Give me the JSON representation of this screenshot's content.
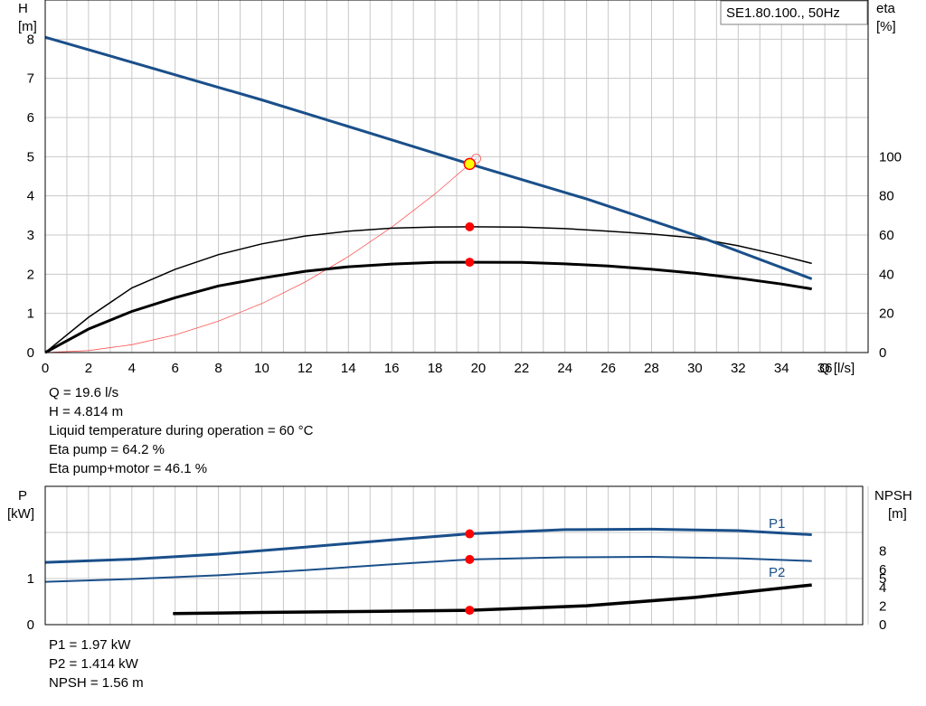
{
  "top_chart": {
    "legend_box": "SE1.80.100., 50Hz",
    "y_left_label": "H",
    "y_left_unit": "[m]",
    "y_right_label": "eta",
    "y_right_unit": "[%]",
    "x_axis_label": "Q [l/s]"
  },
  "bottom_chart": {
    "y_left_label": "P",
    "y_left_unit": "[kW]",
    "y_right_label": "NPSH",
    "y_right_unit": "[m]",
    "series_label_p1": "P1",
    "series_label_p2": "P2"
  },
  "results_top": [
    "Q = 19.6 l/s",
    "H = 4.814 m",
    "Liquid temperature during operation = 60 °C",
    "Eta pump = 64.2 %",
    "Eta pump+motor = 46.1 %"
  ],
  "results_bottom": [
    "P1 = 1.97 kW",
    "P2 = 1.414 kW",
    "NPSH = 1.56 m"
  ],
  "colors": {
    "pump_curve": "#1a4f8a",
    "system_curve": "#ff5555",
    "marker": "#ff0000",
    "duty_point_fill": "#ffff00",
    "grid": "#c8c8c8"
  },
  "chart_data": [
    {
      "type": "line",
      "x_label": "Q [l/s]",
      "y_label": "H [m]",
      "y2_label": "eta [%]",
      "xlim": [
        0,
        38
      ],
      "ylim": [
        0,
        9
      ],
      "y2lim": [
        0,
        180
      ],
      "x_ticks": [
        0,
        2,
        4,
        6,
        8,
        10,
        12,
        14,
        16,
        18,
        20,
        22,
        24,
        26,
        28,
        30,
        32,
        34,
        36
      ],
      "y_ticks": [
        0,
        1,
        2,
        3,
        4,
        5,
        6,
        7,
        8
      ],
      "y2_ticks": [
        0,
        20,
        40,
        60,
        80,
        100
      ],
      "grid": true,
      "series": [
        {
          "axis": "left",
          "x": [
            0,
            5,
            10,
            15,
            19.6,
            25,
            30,
            35.4
          ],
          "y": [
            8.05,
            7.25,
            6.45,
            5.6,
            4.814,
            3.92,
            3.0,
            1.88
          ]
        },
        {
          "axis": "right",
          "x": [
            0,
            2,
            4,
            6,
            8,
            10,
            12,
            14,
            16,
            18,
            19.6,
            22,
            24,
            26,
            28,
            30,
            32,
            34,
            35.4
          ],
          "y": [
            0,
            18,
            33,
            42.5,
            50,
            55.5,
            59.5,
            62,
            63.5,
            64.1,
            64.2,
            64,
            63.3,
            62,
            60.5,
            58.5,
            54.5,
            49.5,
            45.5
          ]
        },
        {
          "axis": "right",
          "x": [
            0,
            2,
            4,
            6,
            8,
            10,
            12,
            14,
            16,
            18,
            19.6,
            22,
            24,
            26,
            28,
            30,
            32,
            34,
            35.4
          ],
          "y": [
            0,
            12,
            21,
            28,
            34,
            38,
            41.5,
            43.8,
            45.2,
            46,
            46.1,
            46,
            45.3,
            44.2,
            42.5,
            40.5,
            38,
            35,
            32.5
          ]
        },
        {
          "axis": "left",
          "x": [
            0,
            2,
            4,
            6,
            8,
            10,
            12,
            14,
            16,
            18,
            19.6,
            19.9
          ],
          "y": [
            0,
            0.05,
            0.2,
            0.45,
            0.8,
            1.25,
            1.8,
            2.45,
            3.2,
            4.05,
            4.814,
            4.95
          ]
        }
      ],
      "duty_point": {
        "x": 19.6,
        "y": 4.814
      },
      "markers": [
        {
          "axis": "right",
          "x": 19.6,
          "y": 64.2
        },
        {
          "axis": "right",
          "x": 19.6,
          "y": 46.1
        }
      ]
    },
    {
      "type": "line",
      "y_label": "P [kW]",
      "y2_label": "NPSH [m]",
      "xlim": [
        0,
        38
      ],
      "ylim": [
        0,
        2.4
      ],
      "y2lim": [
        0,
        12
      ],
      "y_ticks": [
        0,
        1
      ],
      "y2_ticks": [
        0,
        2,
        4,
        5,
        6,
        8
      ],
      "grid": true,
      "series": [
        {
          "name": "P1",
          "axis": "left",
          "x": [
            0,
            4,
            8,
            12,
            16,
            19.6,
            24,
            28,
            32,
            35.4
          ],
          "y": [
            1.35,
            1.42,
            1.53,
            1.68,
            1.84,
            1.97,
            2.06,
            2.07,
            2.04,
            1.95
          ]
        },
        {
          "name": "P2",
          "axis": "left",
          "x": [
            0,
            4,
            8,
            12,
            16,
            19.6,
            24,
            28,
            32,
            35.4
          ],
          "y": [
            0.93,
            0.99,
            1.07,
            1.18,
            1.31,
            1.414,
            1.46,
            1.47,
            1.44,
            1.38
          ]
        },
        {
          "axis": "right",
          "x": [
            5.9,
            10,
            15,
            19.6,
            25,
            30,
            35.4
          ],
          "y": [
            1.2,
            1.32,
            1.43,
            1.56,
            2.05,
            2.95,
            4.3
          ]
        }
      ],
      "markers": [
        {
          "axis": "left",
          "x": 19.6,
          "y": 1.97
        },
        {
          "axis": "left",
          "x": 19.6,
          "y": 1.414
        },
        {
          "axis": "right",
          "x": 19.6,
          "y": 1.56
        }
      ]
    }
  ]
}
